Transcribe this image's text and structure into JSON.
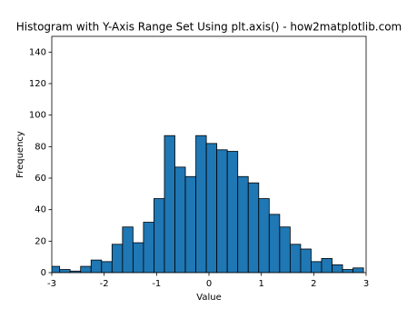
{
  "chart_data": {
    "type": "histogram",
    "title": "Histogram with Y-Axis Range Set Using plt.axis() - how2matplotlib.com",
    "x_label": "Value",
    "y_label": "Frequency",
    "bins": [
      -3.05,
      -2.85,
      -2.65,
      -2.45,
      -2.25,
      -2.05,
      -1.85,
      -1.65,
      -1.45,
      -1.25,
      -1.05,
      -0.85,
      -0.65,
      -0.45,
      -0.25,
      -0.05,
      0.15,
      0.35,
      0.55,
      0.75,
      0.95,
      1.15,
      1.35,
      1.55,
      1.75,
      1.95,
      2.15,
      2.35,
      2.55,
      2.75,
      2.95
    ],
    "values": [
      4,
      2,
      1,
      4,
      8,
      7,
      18,
      29,
      19,
      32,
      47,
      87,
      67,
      61,
      87,
      82,
      78,
      77,
      61,
      57,
      47,
      37,
      29,
      18,
      15,
      7,
      9,
      5,
      2,
      3
    ],
    "color": "#1f77b4",
    "edge_color": "#000000",
    "xlim": [
      -3,
      3
    ],
    "ylim": [
      0,
      150
    ],
    "xticks": [
      -3,
      -2,
      -1,
      0,
      1,
      2,
      3
    ],
    "yticks": [
      0,
      20,
      40,
      60,
      80,
      100,
      120,
      140
    ]
  }
}
